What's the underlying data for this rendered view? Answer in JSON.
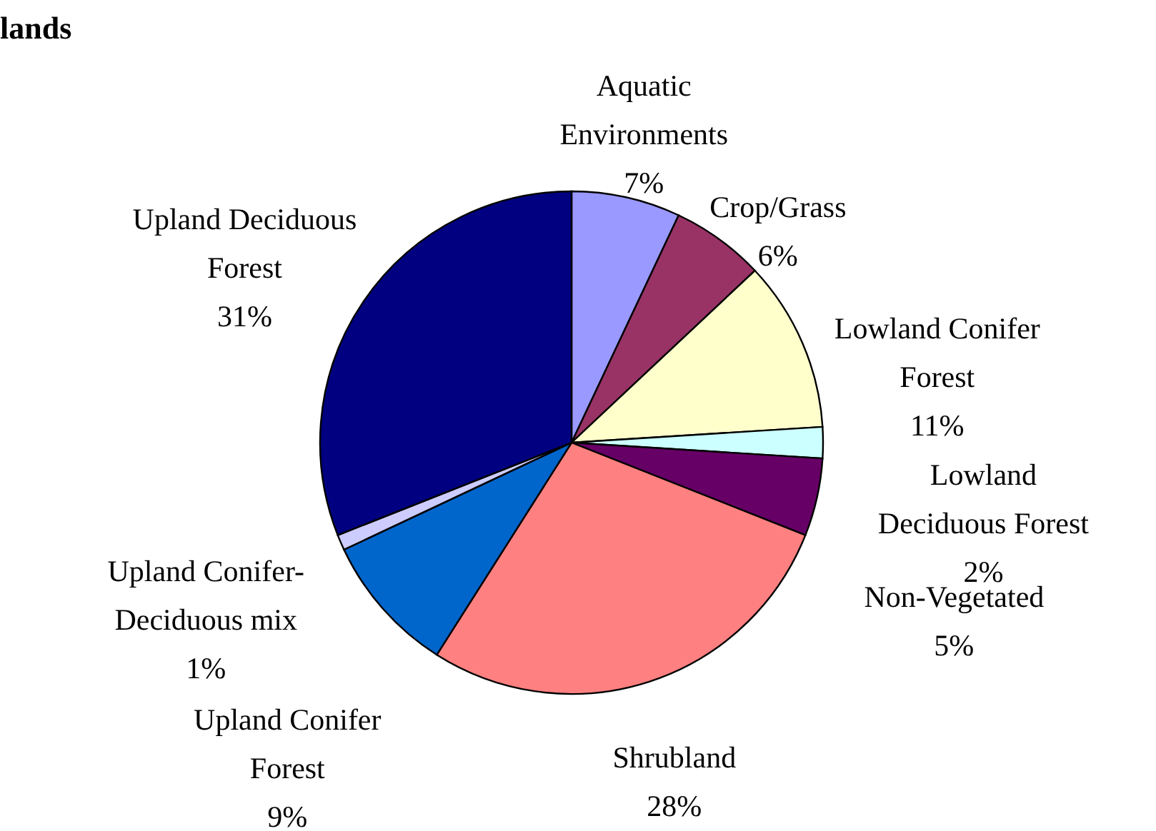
{
  "chart_data": {
    "type": "pie",
    "title": "lands",
    "categories": [
      "Aquatic Environments",
      "Crop/Grass",
      "Lowland Conifer Forest",
      "Lowland Deciduous Forest",
      "Non-Vegetated",
      "Shrubland",
      "Upland Conifer Forest",
      "Upland Conifer-Deciduous mix",
      "Upland Deciduous Forest"
    ],
    "values": [
      7,
      6,
      11,
      2,
      5,
      28,
      9,
      1,
      31
    ],
    "value_labels": [
      "7%",
      "6%",
      "11%",
      "2%",
      "5%",
      "28%",
      "9%",
      "1%",
      "31%"
    ],
    "colors": [
      "#9999ff",
      "#993366",
      "#ffffcc",
      "#ccffff",
      "#660066",
      "#ff8080",
      "#0066cc",
      "#ccccff",
      "#000080"
    ],
    "legend": false
  }
}
